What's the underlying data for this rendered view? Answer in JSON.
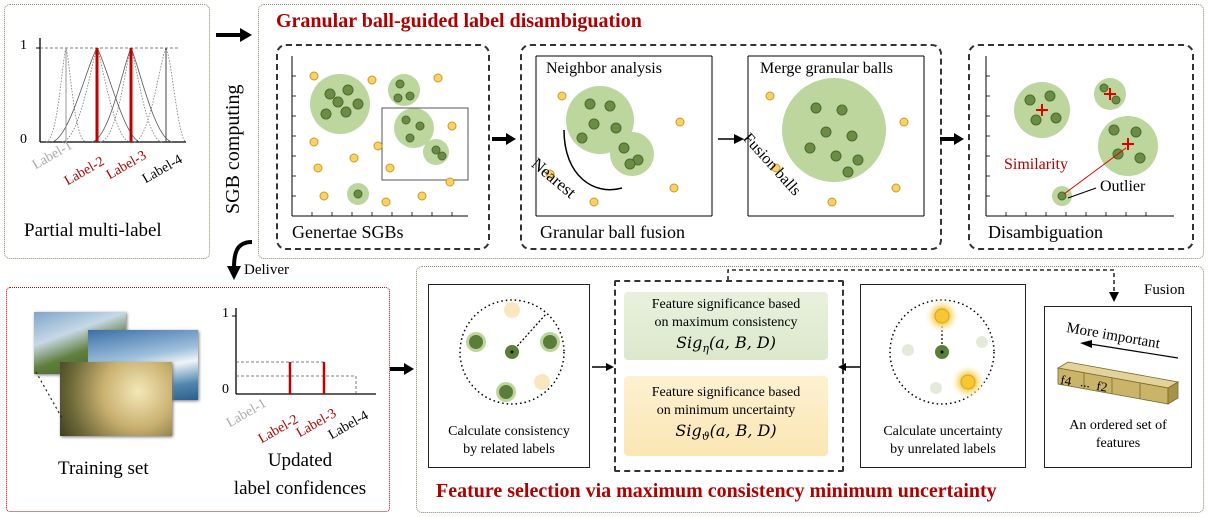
{
  "left_top": {
    "caption": "Partial multi-label",
    "y_ticks": [
      "1",
      "0"
    ],
    "labels": [
      {
        "text": "Label-1",
        "color": "#aaaaaa"
      },
      {
        "text": "Label-2",
        "color": "#b00000"
      },
      {
        "text": "Label-3",
        "color": "#b00000"
      },
      {
        "text": "Label-4",
        "color": "#000000"
      }
    ]
  },
  "sgb_computing": "SGB computing",
  "deliver": "Deliver",
  "top": {
    "title": "Granular ball-guided label disambiguation",
    "generate_caption": "Genertae SGBs",
    "fusion_caption": "Granular ball fusion",
    "neighbor_analysis": "Neighbor analysis",
    "merge_balls": "Merge granular balls",
    "nearest": "Nearest",
    "fusion_balls": "Fusion balls",
    "disambiguation_caption": "Disambiguation",
    "similarity": "Similarity",
    "outlier": "Outlier"
  },
  "bottom_left": {
    "training_set": "Training set",
    "updated_line1": "Updated",
    "updated_line2": "label confidences",
    "y_ticks": [
      "1",
      "0"
    ],
    "labels": [
      {
        "text": "Label-1",
        "color": "#aaaaaa"
      },
      {
        "text": "Label-2",
        "color": "#b00000"
      },
      {
        "text": "Label-3",
        "color": "#b00000"
      },
      {
        "text": "Label-4",
        "color": "#000000"
      }
    ]
  },
  "bottom": {
    "title": "Feature selection via maximum consistency minimum uncertainty",
    "consistency_caption_1": "Calculate consistency",
    "consistency_caption_2": "by related labels",
    "sig_eta_line1": "Feature significance based",
    "sig_eta_line2": "on maximum consistency",
    "sig_eta_formula": "Sig",
    "sig_eta_sub": "η",
    "sig_eta_args": "(a, B, D)",
    "sig_theta_line1": "Feature significance based",
    "sig_theta_line2": "on minimum uncertainty",
    "sig_theta_formula": "Sig",
    "sig_theta_sub": "ϑ",
    "sig_theta_args": "(a, B, D)",
    "uncertainty_caption_1": "Calculate uncertainty",
    "uncertainty_caption_2": "by unrelated labels",
    "fusion": "Fusion",
    "more_important": "More important",
    "f4": "f4",
    "f2": "f2",
    "dots": "...",
    "ordered_1": "An ordered set of",
    "ordered_2": "features"
  },
  "colors": {
    "accent_red": "#b00000",
    "ball_green": "#a8c98a",
    "point_green": "#5a7d3a",
    "point_yellow": "#f5cd5a"
  }
}
